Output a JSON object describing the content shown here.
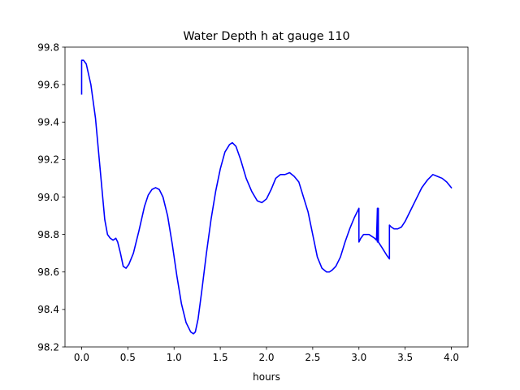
{
  "chart_data": {
    "type": "line",
    "title": "Water Depth h at gauge 110",
    "xlabel": "hours",
    "ylabel": "",
    "xlim": [
      -0.18,
      4.18
    ],
    "ylim": [
      98.2,
      99.8
    ],
    "x_ticks": [
      0.0,
      0.5,
      1.0,
      1.5,
      2.0,
      2.5,
      3.0,
      3.5,
      4.0
    ],
    "x_tick_labels": [
      "0.0",
      "0.5",
      "1.0",
      "1.5",
      "2.0",
      "2.5",
      "3.0",
      "3.5",
      "4.0"
    ],
    "y_ticks": [
      98.2,
      98.4,
      98.6,
      98.8,
      99.0,
      99.2,
      99.4,
      99.6,
      99.8
    ],
    "y_tick_labels": [
      "98.2",
      "98.4",
      "98.6",
      "98.8",
      "99.0",
      "99.2",
      "99.4",
      "99.6",
      "99.8"
    ],
    "grid": false,
    "legend": "none",
    "series": [
      {
        "color": "#0000ff",
        "x": [
          0.0,
          0.0,
          0.02,
          0.05,
          0.1,
          0.15,
          0.2,
          0.25,
          0.28,
          0.31,
          0.34,
          0.37,
          0.39,
          0.42,
          0.45,
          0.48,
          0.51,
          0.56,
          0.62,
          0.68,
          0.72,
          0.76,
          0.8,
          0.84,
          0.88,
          0.93,
          0.98,
          1.03,
          1.08,
          1.13,
          1.18,
          1.21,
          1.23,
          1.26,
          1.3,
          1.35,
          1.4,
          1.45,
          1.5,
          1.55,
          1.6,
          1.63,
          1.67,
          1.72,
          1.78,
          1.84,
          1.9,
          1.95,
          2.0,
          2.05,
          2.1,
          2.15,
          2.2,
          2.25,
          2.3,
          2.35,
          2.4,
          2.45,
          2.5,
          2.55,
          2.6,
          2.65,
          2.68,
          2.71,
          2.75,
          2.8,
          2.85,
          2.9,
          2.95,
          3.0,
          3.0,
          3.02,
          3.05,
          3.08,
          3.11,
          3.14,
          3.17,
          3.19,
          3.2,
          3.2,
          3.21,
          3.21,
          3.25,
          3.3,
          3.33,
          3.33,
          3.35,
          3.38,
          3.42,
          3.46,
          3.5,
          3.56,
          3.62,
          3.68,
          3.74,
          3.8,
          3.85,
          3.9,
          3.95,
          4.0
        ],
        "y": [
          99.55,
          99.73,
          99.73,
          99.71,
          99.6,
          99.42,
          99.15,
          98.88,
          98.8,
          98.78,
          98.77,
          98.78,
          98.76,
          98.7,
          98.63,
          98.62,
          98.64,
          98.7,
          98.82,
          98.95,
          99.01,
          99.04,
          99.05,
          99.04,
          99.0,
          98.9,
          98.75,
          98.58,
          98.43,
          98.33,
          98.28,
          98.27,
          98.28,
          98.35,
          98.5,
          98.7,
          98.88,
          99.03,
          99.15,
          99.24,
          99.28,
          99.29,
          99.27,
          99.2,
          99.1,
          99.03,
          98.98,
          98.97,
          98.99,
          99.04,
          99.1,
          99.12,
          99.12,
          99.13,
          99.11,
          99.08,
          99.0,
          98.92,
          98.8,
          98.68,
          98.62,
          98.6,
          98.6,
          98.61,
          98.63,
          98.68,
          98.76,
          98.83,
          98.89,
          98.94,
          98.76,
          98.78,
          98.8,
          98.8,
          98.8,
          98.79,
          98.78,
          98.77,
          98.94,
          98.76,
          98.94,
          98.76,
          98.73,
          98.69,
          98.67,
          98.85,
          98.84,
          98.83,
          98.83,
          98.84,
          98.87,
          98.93,
          98.99,
          99.05,
          99.09,
          99.12,
          99.11,
          99.1,
          99.08,
          99.05
        ]
      }
    ]
  }
}
